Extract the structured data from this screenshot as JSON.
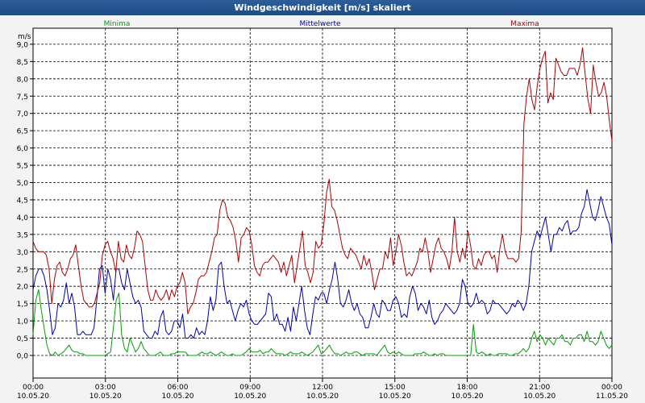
{
  "window": {
    "title": "Windgeschwindigkeit [m/s] skaliert"
  },
  "chart_data": {
    "type": "line",
    "title": "Windgeschwindigkeit [m/s] skaliert",
    "ylabel": "m/s",
    "ylim": [
      -0.45,
      9.25
    ],
    "xlim": [
      0,
      24
    ],
    "grid": true,
    "legend_placement": "top",
    "y_ticks": [
      "0,0",
      "0,5",
      "1,0",
      "1,5",
      "2,0",
      "2,5",
      "3,0",
      "3,5",
      "4,0",
      "4,5",
      "5,0",
      "5,5",
      "6,0",
      "6,5",
      "7,0",
      "7,5",
      "8,0",
      "8,5",
      "9,0"
    ],
    "x_ticks": [
      {
        "time": "00:00",
        "date": "10.05.20"
      },
      {
        "time": "03:00",
        "date": "10.05.20"
      },
      {
        "time": "06:00",
        "date": "10.05.20"
      },
      {
        "time": "09:00",
        "date": "10.05.20"
      },
      {
        "time": "12:00",
        "date": "10.05.20"
      },
      {
        "time": "15:00",
        "date": "10.05.20"
      },
      {
        "time": "18:00",
        "date": "10.05.20"
      },
      {
        "time": "21:00",
        "date": "10.05.20"
      },
      {
        "time": "00:00",
        "date": "11.05.20"
      }
    ],
    "series": [
      {
        "name": "Minima",
        "color": "#00a000",
        "values": [
          0.6,
          1.6,
          1.9,
          1.3,
          0.8,
          0.3,
          0.05,
          0.0,
          0.1,
          0.0,
          0.05,
          0.1,
          0.2,
          0.3,
          0.15,
          0.1,
          0.1,
          0.05,
          0.05,
          0.0,
          0.0,
          0.0,
          0.0,
          0.0,
          0.0,
          0.0,
          0.0,
          0.05,
          0.1,
          0.8,
          1.6,
          1.8,
          0.6,
          0.2,
          0.1,
          0.5,
          0.3,
          0.1,
          0.2,
          0.4,
          0.2,
          0.1,
          0.0,
          0.0,
          0.0,
          0.05,
          0.1,
          0.0,
          0.0,
          0.0,
          0.05,
          0.05,
          0.1,
          0.1,
          0.1,
          0.1,
          0.0,
          0.0,
          0.0,
          0.0,
          0.05,
          0.1,
          0.05,
          0.05,
          0.1,
          0.05,
          0.0,
          0.05,
          0.1,
          0.05,
          0.0,
          0.0,
          0.05,
          0.0,
          0.0,
          0.0,
          0.05,
          0.1,
          0.2,
          0.1,
          0.1,
          0.1,
          0.15,
          0.05,
          0.1,
          0.1,
          0.2,
          0.1,
          0.05,
          0.05,
          0.05,
          0.0,
          0.05,
          0.1,
          0.05,
          0.05,
          0.05,
          0.1,
          0.05,
          0.0,
          0.05,
          0.1,
          0.2,
          0.3,
          0.05,
          0.1,
          0.2,
          0.3,
          0.15,
          0.05,
          0.05,
          0.0,
          0.05,
          0.1,
          0.05,
          0.05,
          0.1,
          0.1,
          0.05,
          0.0,
          0.05,
          0.05,
          0.05,
          0.05,
          0.0,
          0.1,
          0.2,
          0.3,
          0.1,
          0.05,
          0.1,
          0.05,
          0.1,
          0.05,
          0.0,
          0.0,
          0.0,
          0.0,
          0.05,
          0.05,
          0.05,
          0.1,
          0.05,
          0.0,
          0.0,
          0.05,
          0.0,
          0.05,
          0.05,
          0.0,
          0.0,
          0.0,
          0.0,
          0.0,
          0.0,
          0.0,
          0.0,
          0.0,
          0.0,
          0.9,
          0.1,
          0.05,
          0.1,
          0.05,
          0.0,
          0.05,
          0.0,
          0.0,
          0.05,
          0.05,
          0.05,
          0.05,
          0.0,
          0.0,
          0.05,
          0.05,
          0.1,
          0.2,
          0.1,
          0.2,
          0.5,
          0.7,
          0.4,
          0.6,
          0.5,
          0.3,
          0.5,
          0.4,
          0.3,
          0.5,
          0.5,
          0.6,
          0.4,
          0.4,
          0.3,
          0.5,
          0.5,
          0.6,
          0.6,
          0.4,
          0.7,
          0.4,
          0.4,
          0.3,
          0.4,
          0.7,
          0.5,
          0.3,
          0.2,
          0.3
        ]
      },
      {
        "name": "Mittelwerte",
        "color": "#0000b0",
        "values": [
          1.9,
          2.3,
          2.5,
          2.5,
          2.3,
          1.9,
          1.3,
          0.6,
          0.8,
          1.5,
          1.4,
          1.6,
          2.1,
          1.5,
          1.8,
          1.4,
          0.6,
          0.6,
          0.7,
          0.6,
          0.6,
          0.6,
          0.8,
          1.6,
          2.5,
          2.6,
          1.8,
          2.5,
          2.2,
          1.6,
          2.5,
          2.5,
          2.1,
          1.9,
          2.5,
          2.1,
          1.7,
          1.5,
          1.6,
          1.4,
          0.7,
          0.6,
          0.5,
          0.5,
          0.7,
          0.6,
          1.1,
          1.3,
          0.7,
          0.6,
          0.7,
          1.0,
          1.0,
          0.8,
          1.2,
          0.5,
          0.5,
          0.6,
          0.5,
          0.8,
          0.6,
          0.7,
          0.6,
          1.0,
          1.7,
          1.3,
          1.6,
          2.6,
          2.7,
          2.0,
          1.5,
          1.6,
          1.3,
          1.0,
          1.3,
          1.5,
          1.4,
          1.6,
          1.2,
          1.0,
          0.9,
          0.9,
          1.0,
          1.1,
          1.2,
          1.8,
          1.7,
          1.0,
          1.2,
          0.9,
          0.9,
          0.7,
          1.1,
          0.7,
          1.4,
          1.0,
          1.5,
          2.0,
          1.3,
          0.8,
          0.6,
          1.2,
          1.7,
          1.6,
          1.8,
          1.8,
          1.5,
          1.9,
          2.2,
          2.7,
          2.2,
          1.5,
          1.4,
          1.6,
          1.9,
          1.5,
          1.3,
          1.5,
          1.2,
          1.1,
          0.8,
          0.8,
          1.1,
          1.5,
          1.2,
          1.1,
          1.6,
          1.5,
          1.3,
          1.3,
          1.6,
          1.7,
          1.5,
          1.1,
          1.2,
          1.1,
          1.7,
          2.0,
          1.8,
          1.3,
          1.5,
          1.4,
          1.2,
          1.6,
          1.1,
          0.9,
          1.0,
          1.2,
          1.3,
          1.5,
          1.4,
          1.3,
          1.2,
          1.3,
          1.5,
          2.2,
          2.0,
          1.5,
          1.4,
          1.5,
          1.8,
          1.5,
          1.6,
          1.5,
          1.2,
          1.3,
          1.6,
          1.5,
          1.5,
          1.4,
          1.3,
          1.2,
          1.3,
          1.5,
          1.4,
          1.6,
          1.5,
          1.3,
          1.5,
          2.0,
          3.0,
          3.3,
          3.6,
          3.4,
          3.7,
          4.0,
          3.5,
          3.0,
          3.5,
          3.5,
          3.7,
          3.6,
          3.8,
          3.9,
          3.5,
          3.6,
          3.6,
          3.7,
          4.1,
          4.3,
          4.8,
          4.4,
          4.0,
          3.9,
          4.2,
          4.6,
          4.3,
          4.0,
          3.8,
          3.2
        ]
      },
      {
        "name": "Maxima",
        "color": "#b00000",
        "values": [
          3.3,
          3.1,
          3.0,
          3.0,
          3.0,
          2.9,
          2.5,
          1.5,
          2.2,
          2.6,
          2.7,
          2.4,
          2.3,
          2.5,
          2.8,
          2.9,
          3.2,
          2.6,
          2.0,
          1.6,
          1.5,
          1.4,
          1.4,
          1.5,
          1.8,
          2.1,
          2.9,
          3.2,
          3.3,
          3.0,
          2.8,
          2.4,
          3.3,
          2.8,
          2.7,
          3.2,
          2.9,
          2.8,
          3.1,
          3.6,
          3.5,
          3.3,
          2.6,
          1.9,
          1.6,
          1.6,
          1.9,
          1.7,
          1.6,
          1.7,
          1.9,
          1.6,
          1.9,
          1.7,
          2.0,
          2.1,
          2.4,
          2.1,
          1.2,
          1.4,
          1.5,
          1.8,
          2.2,
          2.3,
          2.3,
          2.4,
          2.7,
          3.0,
          3.4,
          3.5,
          4.2,
          4.5,
          4.4,
          4.0,
          3.9,
          3.7,
          3.3,
          2.7,
          3.4,
          3.5,
          3.7,
          3.6,
          3.2,
          2.6,
          2.4,
          2.3,
          2.6,
          2.7,
          2.7,
          2.8,
          2.9,
          2.8,
          2.7,
          2.4,
          2.7,
          2.3,
          2.6,
          2.9,
          2.1,
          2.6,
          3.1,
          3.6,
          2.6,
          2.4,
          2.1,
          2.4,
          3.3,
          3.1,
          3.2,
          3.8,
          4.7,
          5.1,
          4.3,
          4.2,
          3.9,
          3.5,
          3.1,
          2.9,
          2.8,
          3.1,
          3.0,
          2.9,
          2.7,
          2.5,
          2.9,
          2.6,
          2.8,
          2.4,
          1.9,
          2.2,
          2.5,
          2.5,
          3.0,
          2.8,
          3.4,
          2.6,
          3.0,
          3.5,
          3.2,
          2.7,
          2.3,
          2.4,
          2.3,
          2.5,
          2.7,
          3.1,
          3.0,
          3.4,
          3.0,
          2.4,
          2.8,
          3.2,
          3.4,
          3.1,
          3.0,
          2.8,
          2.5,
          3.0,
          4.0,
          3.0,
          2.7,
          3.1,
          2.8,
          3.6,
          3.2,
          2.6,
          2.5,
          2.8,
          2.6,
          2.9,
          3.0,
          3.0,
          2.8,
          2.9,
          2.4,
          3.1,
          3.5,
          3.0,
          2.8,
          2.8,
          2.8,
          2.7,
          2.8,
          3.6,
          6.7,
          7.5,
          8.0,
          7.4,
          7.1,
          7.8,
          8.3,
          8.6,
          8.8,
          7.3,
          7.6,
          7.4,
          8.6,
          8.4,
          8.2,
          8.1,
          8.1,
          8.3,
          8.3,
          8.3,
          8.1,
          8.4,
          8.9,
          8.1,
          7.4,
          7.0,
          8.4,
          7.9,
          7.5,
          7.6,
          7.9,
          7.5,
          6.8,
          6.2
        ]
      }
    ]
  }
}
